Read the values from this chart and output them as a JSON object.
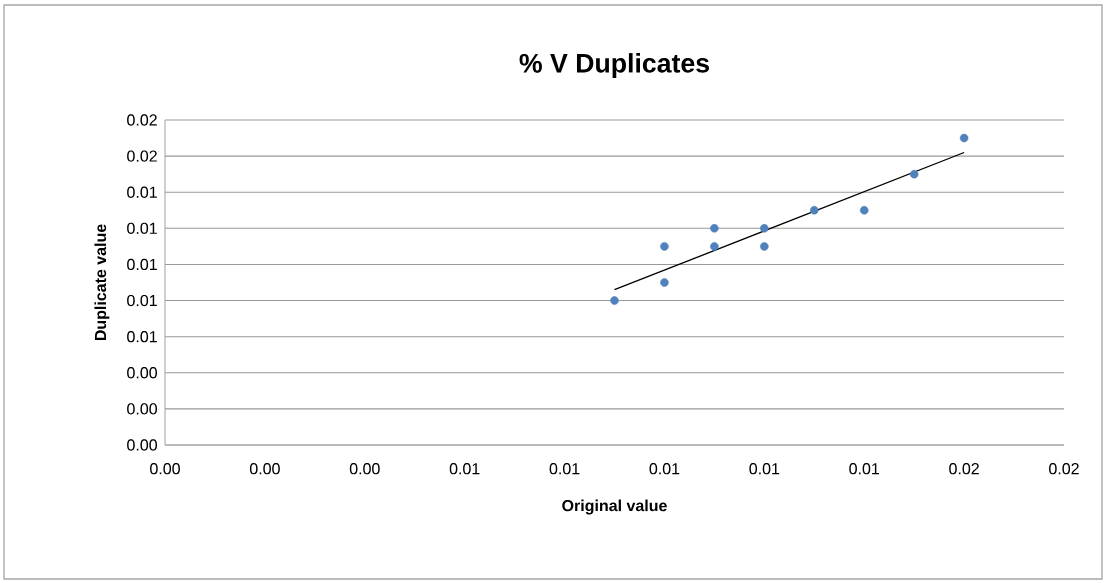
{
  "chart_data": {
    "type": "scatter",
    "title": "% V Duplicates",
    "xlabel": "Original value",
    "ylabel": "Duplicate value",
    "xlim": [
      0,
      0.018
    ],
    "ylim": [
      0,
      0.018
    ],
    "xticks": [
      {
        "value": 0,
        "label": "0.00"
      },
      {
        "value": 0.002,
        "label": "0.00"
      },
      {
        "value": 0.004,
        "label": "0.00"
      },
      {
        "value": 0.006,
        "label": "0.01"
      },
      {
        "value": 0.008,
        "label": "0.01"
      },
      {
        "value": 0.01,
        "label": "0.01"
      },
      {
        "value": 0.012,
        "label": "0.01"
      },
      {
        "value": 0.014,
        "label": "0.01"
      },
      {
        "value": 0.016,
        "label": "0.02"
      },
      {
        "value": 0.018,
        "label": "0.02"
      }
    ],
    "yticks": [
      {
        "value": 0,
        "label": "0.00"
      },
      {
        "value": 0.002,
        "label": "0.00"
      },
      {
        "value": 0.004,
        "label": "0.00"
      },
      {
        "value": 0.006,
        "label": "0.01"
      },
      {
        "value": 0.008,
        "label": "0.01"
      },
      {
        "value": 0.01,
        "label": "0.01"
      },
      {
        "value": 0.012,
        "label": "0.01"
      },
      {
        "value": 0.014,
        "label": "0.01"
      },
      {
        "value": 0.016,
        "label": "0.02"
      },
      {
        "value": 0.018,
        "label": "0.02"
      }
    ],
    "grid": "y",
    "series": [
      {
        "marker": "circle",
        "color": "#4f81bd",
        "x": [
          0.009,
          0.01,
          0.01,
          0.011,
          0.011,
          0.012,
          0.012,
          0.013,
          0.014,
          0.015,
          0.016
        ],
        "values": [
          0.008,
          0.009,
          0.011,
          0.011,
          0.012,
          0.011,
          0.012,
          0.013,
          0.013,
          0.015,
          0.017
        ]
      },
      {
        "type": "line",
        "marker": "none",
        "color": "#000000",
        "x": [
          0.009,
          0.016
        ],
        "values": [
          0.0086,
          0.0162
        ]
      }
    ]
  }
}
